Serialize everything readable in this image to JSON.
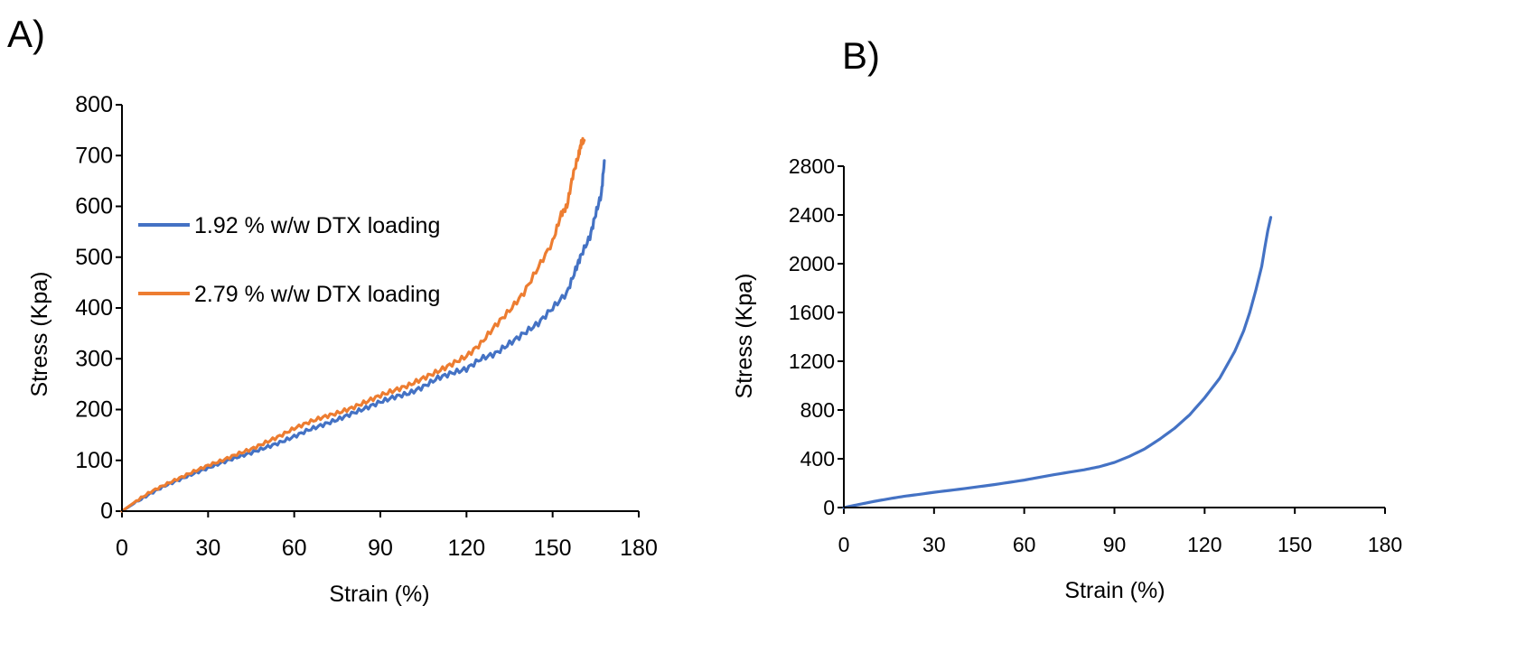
{
  "colors": {
    "blue": "#4472C4",
    "orange": "#ED7D31"
  },
  "chart_data": [
    {
      "panel_label": "A)",
      "type": "line",
      "xlabel": "Strain (%)",
      "ylabel": "Stress (Kpa)",
      "xlim": [
        0,
        180
      ],
      "ylim": [
        0,
        800
      ],
      "xticks": [
        0,
        30,
        60,
        90,
        120,
        150,
        180
      ],
      "yticks": [
        0,
        100,
        200,
        300,
        400,
        500,
        600,
        700,
        800
      ],
      "legend_position": "left",
      "series": [
        {
          "name": "1.92 % w/w DTX loading",
          "color": "#4472C4",
          "x": [
            0,
            5,
            10,
            15,
            20,
            25,
            30,
            35,
            40,
            45,
            50,
            55,
            60,
            65,
            70,
            75,
            80,
            85,
            90,
            95,
            100,
            105,
            110,
            115,
            120,
            125,
            130,
            135,
            140,
            145,
            150,
            155,
            158,
            160,
            163,
            165,
            167,
            168
          ],
          "y": [
            0,
            18,
            35,
            50,
            62,
            74,
            85,
            96,
            106,
            115,
            125,
            135,
            147,
            160,
            170,
            180,
            192,
            203,
            215,
            225,
            232,
            245,
            262,
            272,
            280,
            300,
            310,
            330,
            350,
            370,
            400,
            430,
            475,
            505,
            540,
            585,
            625,
            690
          ]
        },
        {
          "name": "2.79 % w/w DTX loading",
          "color": "#ED7D31",
          "x": [
            0,
            5,
            10,
            15,
            20,
            25,
            30,
            35,
            40,
            45,
            50,
            55,
            60,
            65,
            70,
            75,
            80,
            85,
            90,
            95,
            100,
            105,
            110,
            115,
            120,
            125,
            130,
            135,
            140,
            145,
            150,
            153,
            155,
            157,
            159,
            160,
            161
          ],
          "y": [
            0,
            20,
            38,
            52,
            65,
            78,
            90,
            100,
            112,
            122,
            135,
            148,
            163,
            175,
            185,
            193,
            203,
            215,
            228,
            238,
            248,
            262,
            275,
            290,
            305,
            330,
            365,
            395,
            430,
            480,
            530,
            585,
            600,
            660,
            700,
            725,
            730
          ]
        }
      ]
    },
    {
      "panel_label": "B)",
      "type": "line",
      "xlabel": "Strain (%)",
      "ylabel": "Stress (Kpa)",
      "xlim": [
        0,
        180
      ],
      "ylim": [
        0,
        2800
      ],
      "xticks": [
        0,
        30,
        60,
        90,
        120,
        150,
        180
      ],
      "yticks": [
        0,
        400,
        800,
        1200,
        1600,
        2000,
        2400,
        2800
      ],
      "series": [
        {
          "name": "",
          "color": "#4472C4",
          "x": [
            0,
            5,
            10,
            15,
            20,
            25,
            30,
            40,
            50,
            60,
            70,
            80,
            85,
            90,
            95,
            100,
            105,
            110,
            115,
            120,
            125,
            130,
            133,
            135,
            137,
            139,
            140,
            141,
            142
          ],
          "y": [
            0,
            25,
            50,
            72,
            92,
            108,
            125,
            155,
            188,
            225,
            270,
            310,
            335,
            370,
            420,
            480,
            560,
            650,
            760,
            900,
            1060,
            1280,
            1450,
            1600,
            1780,
            1980,
            2130,
            2270,
            2380
          ]
        }
      ]
    }
  ]
}
